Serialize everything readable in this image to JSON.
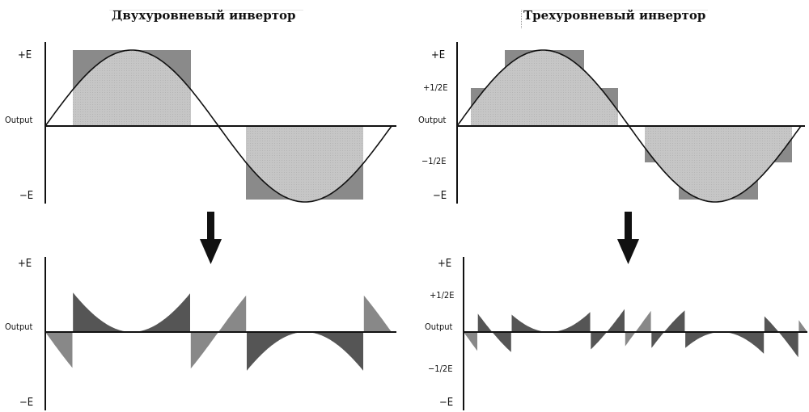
{
  "titles": {
    "left": "Двухуровневый инвертор",
    "right": "Трехуровневый инвертор"
  },
  "axis_labels": {
    "plus_e": "+E",
    "minus_e": "−E",
    "plus_half_e": "+1/2E",
    "minus_half_e": "−1/2E",
    "output": "Output"
  },
  "colors": {
    "dark_fill": "#8a8a8a",
    "light_fill": "#c4c4c4",
    "wave": "#111111",
    "axis": "#111111",
    "error_fill": "#555555",
    "error_fill_light": "#888888"
  },
  "icons": {
    "arrow": "down-arrow-icon"
  }
}
